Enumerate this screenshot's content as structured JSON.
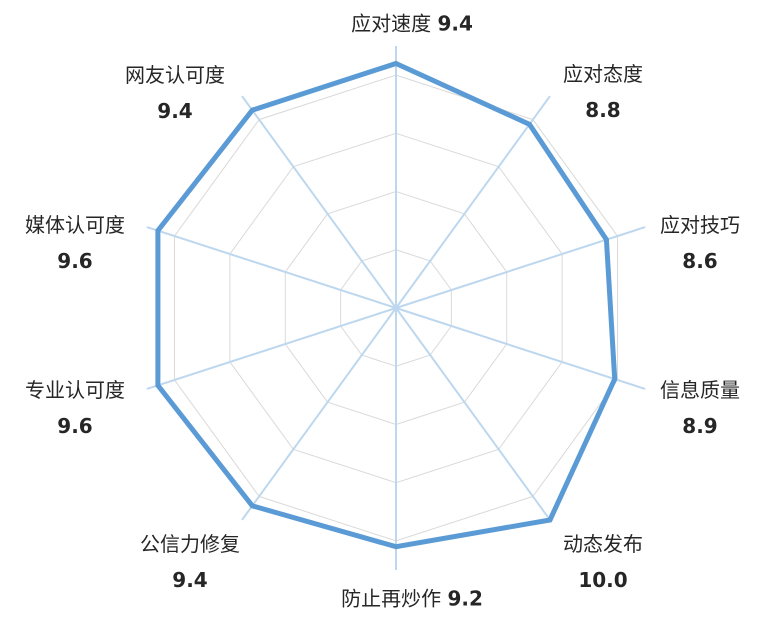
{
  "chart_data": {
    "type": "radar",
    "categories": [
      "应对速度",
      "应对态度",
      "应对技巧",
      "信息质量",
      "动态发布",
      "防止再炒作",
      "公信力修复",
      "专业认可度",
      "媒体认可度",
      "网友认可度"
    ],
    "values": [
      9.4,
      8.8,
      8.6,
      8.9,
      10.0,
      9.2,
      9.4,
      9.6,
      9.6,
      9.4
    ],
    "value_labels": [
      "9.4",
      "8.8",
      "8.6",
      "8.9",
      "10.0",
      "9.2",
      "9.4",
      "9.6",
      "9.6",
      "9.4"
    ],
    "axis_range": [
      1,
      10
    ],
    "grid_rings": [
      3,
      5,
      7,
      9
    ],
    "grid": true,
    "legend": "none",
    "colors": {
      "series": "#5b9bd5",
      "axes": "#bdd7ee",
      "grid": "#d9d9d9"
    }
  }
}
